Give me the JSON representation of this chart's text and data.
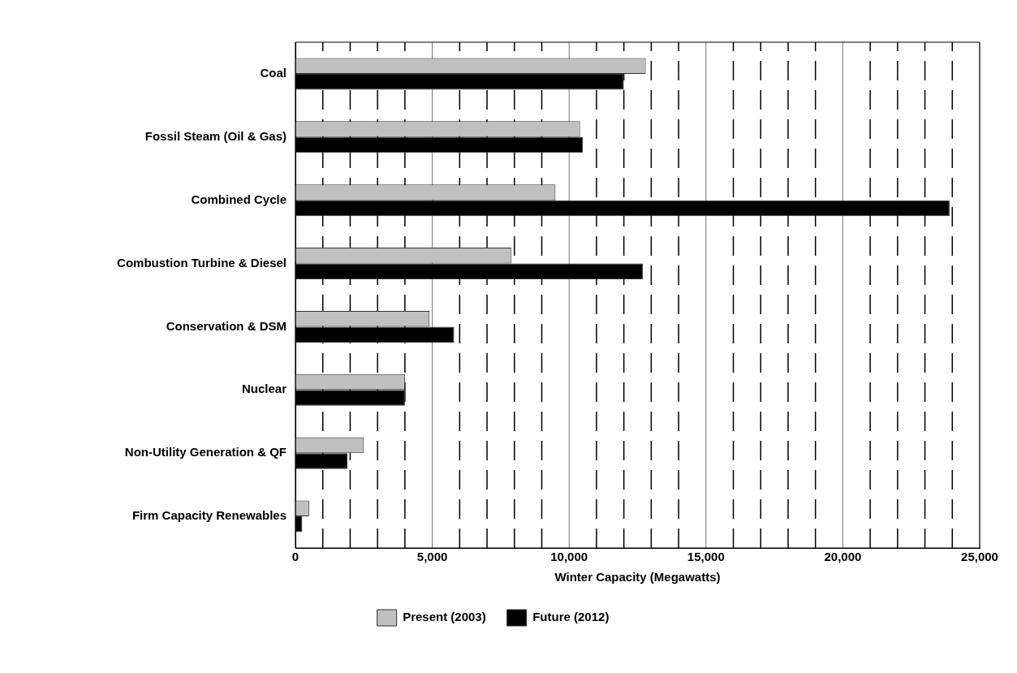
{
  "chart_data": {
    "type": "bar",
    "orientation": "horizontal",
    "xlabel": "Winter Capacity (Megawatts)",
    "categories": [
      "Coal",
      "Fossil Steam (Oil & Gas)",
      "Combined Cycle",
      "Combustion Turbine & Diesel",
      "Conservation & DSM",
      "Nuclear",
      "Non-Utility Generation & QF",
      "Firm Capacity Renewables"
    ],
    "series": [
      {
        "name": "Present (2003)",
        "color": "#c0c0c0",
        "values": [
          12800,
          10400,
          9500,
          7900,
          4900,
          4000,
          2500,
          500
        ]
      },
      {
        "name": "Future (2012)",
        "color": "#000000",
        "values": [
          12000,
          10500,
          23900,
          12700,
          5800,
          4000,
          1900,
          250
        ]
      }
    ],
    "xlim": [
      0,
      25000
    ],
    "xticks": [
      0,
      {
        "value": 1000,
        "label": null
      },
      {
        "value": 2000,
        "label": null
      },
      {
        "value": 3000,
        "label": null
      },
      {
        "value": 4000,
        "label": null
      },
      {
        "value": 5000,
        "label": "5,000"
      },
      {
        "value": 6000,
        "label": null
      },
      {
        "value": 7000,
        "label": null
      },
      {
        "value": 8000,
        "label": null
      },
      {
        "value": 9000,
        "label": null
      },
      {
        "value": 10000,
        "label": "10,000"
      },
      {
        "value": 11000,
        "label": null
      },
      {
        "value": 12000,
        "label": null
      },
      {
        "value": 13000,
        "label": null
      },
      {
        "value": 14000,
        "label": null
      },
      {
        "value": 15000,
        "label": "15,000"
      },
      {
        "value": 16000,
        "label": null
      },
      {
        "value": 17000,
        "label": null
      },
      {
        "value": 18000,
        "label": null
      },
      {
        "value": 19000,
        "label": null
      },
      {
        "value": 20000,
        "label": "20,000"
      },
      {
        "value": 21000,
        "label": null
      },
      {
        "value": 22000,
        "label": null
      },
      {
        "value": 23000,
        "label": null
      },
      {
        "value": 24000,
        "label": null
      },
      {
        "value": 25000,
        "label": "25,000"
      }
    ],
    "grid": "x",
    "legend": "bottom"
  }
}
